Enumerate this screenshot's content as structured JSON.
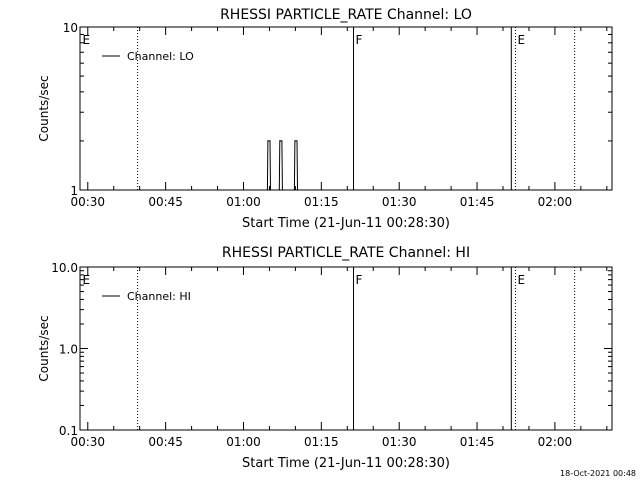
{
  "footer_timestamp": "18-Oct-2021 00:48",
  "chart_data": [
    {
      "type": "line",
      "title": "RHESSI PARTICLE_RATE Channel: LO",
      "xlabel": "Start Time (21-Jun-11 00:28:30)",
      "ylabel": "Counts/sec",
      "y_scale": "log",
      "ylim": [
        1,
        10
      ],
      "y_ticks": [
        1,
        10
      ],
      "y_tick_labels": [
        "1",
        "10"
      ],
      "xlim_min": [
        28.5,
        131
      ],
      "x_tick_labels": [
        "00:30",
        "00:45",
        "01:00",
        "01:15",
        "01:30",
        "01:45",
        "02:00"
      ],
      "x_ticks_min": [
        30,
        45,
        60,
        75,
        90,
        105,
        120
      ],
      "legend": "Channel: LO",
      "legend_position": "top-left",
      "grid": false,
      "series": [
        {
          "name": "Channel: LO",
          "x": [
            64.6,
            64.7,
            64.9,
            65.1,
            65.2,
            66.9,
            67.0,
            67.2,
            67.4,
            67.5,
            69.8,
            69.9,
            70.1,
            70.3,
            70.4
          ],
          "y": [
            1,
            2,
            2,
            2,
            1,
            1,
            2,
            2,
            2,
            1,
            1,
            2,
            2,
            2,
            1
          ]
        }
      ],
      "markers": [
        {
          "label": "E",
          "x_min": 28.6,
          "style": "none"
        },
        {
          "label": "",
          "x_min": 39.6,
          "style": "dotted"
        },
        {
          "label": "F",
          "x_min": 81.2,
          "style": "solid"
        },
        {
          "label": "",
          "x_min": 111.6,
          "style": "solid"
        },
        {
          "label": "E",
          "x_min": 112.4,
          "style": "dotted"
        },
        {
          "label": "",
          "x_min": 123.8,
          "style": "dotted"
        }
      ]
    },
    {
      "type": "line",
      "title": "RHESSI PARTICLE_RATE Channel: HI",
      "xlabel": "Start Time (21-Jun-11 00:28:30)",
      "ylabel": "Counts/sec",
      "y_scale": "log",
      "ylim": [
        0.1,
        10
      ],
      "y_ticks": [
        0.1,
        1,
        10
      ],
      "y_tick_labels": [
        "0.1",
        "1.0",
        "10.0"
      ],
      "xlim_min": [
        28.5,
        131
      ],
      "x_tick_labels": [
        "00:30",
        "00:45",
        "01:00",
        "01:15",
        "01:30",
        "01:45",
        "02:00"
      ],
      "x_ticks_min": [
        30,
        45,
        60,
        75,
        90,
        105,
        120
      ],
      "legend": "Channel: HI",
      "legend_position": "top-left",
      "grid": false,
      "series": [
        {
          "name": "Channel: HI",
          "x": [],
          "y": []
        }
      ],
      "markers": [
        {
          "label": "E",
          "x_min": 28.6,
          "style": "none"
        },
        {
          "label": "",
          "x_min": 39.6,
          "style": "dotted"
        },
        {
          "label": "F",
          "x_min": 81.2,
          "style": "solid"
        },
        {
          "label": "",
          "x_min": 111.6,
          "style": "solid"
        },
        {
          "label": "E",
          "x_min": 112.4,
          "style": "dotted"
        },
        {
          "label": "",
          "x_min": 123.8,
          "style": "dotted"
        }
      ]
    }
  ]
}
